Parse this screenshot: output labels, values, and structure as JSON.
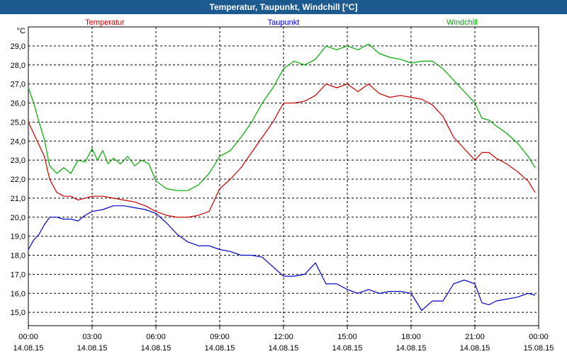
{
  "chart_data": {
    "type": "line",
    "title": "Temperatur, Taupunkt, Windchill [°C]",
    "ylabel": "°C",
    "ylim": [
      14.3,
      30.0
    ],
    "xlim": [
      "14.08.15 00:00",
      "15.08.15 00:00"
    ],
    "grid": true,
    "legend_placement": "top",
    "yticks": [
      "15,0",
      "16,0",
      "17,0",
      "18,0",
      "19,0",
      "20,0",
      "21,0",
      "22,0",
      "23,0",
      "24,0",
      "25,0",
      "26,0",
      "27,0",
      "28,0",
      "29,0"
    ],
    "xticks": [
      {
        "time": "00:00",
        "date": "14.08.15"
      },
      {
        "time": "03:00",
        "date": "14.08.15"
      },
      {
        "time": "06:00",
        "date": "14.08.15"
      },
      {
        "time": "09:00",
        "date": "14.08.15"
      },
      {
        "time": "12:00",
        "date": "14.08.15"
      },
      {
        "time": "15:00",
        "date": "14.08.15"
      },
      {
        "time": "18:00",
        "date": "14.08.15"
      },
      {
        "time": "21:00",
        "date": "14.08.15"
      },
      {
        "time": "00:00",
        "date": "15.08.15"
      }
    ],
    "series": [
      {
        "name": "Temperatur",
        "color": "#cc0000",
        "x": [
          "00:00",
          "00:15",
          "00:30",
          "00:45",
          "01:00",
          "01:20",
          "01:40",
          "02:00",
          "02:20",
          "02:40",
          "03:00",
          "03:30",
          "04:00",
          "04:30",
          "05:00",
          "05:30",
          "06:00",
          "06:30",
          "07:00",
          "07:30",
          "08:00",
          "08:30",
          "09:00",
          "09:30",
          "10:00",
          "10:30",
          "11:00",
          "11:30",
          "12:00",
          "12:30",
          "13:00",
          "13:30",
          "14:00",
          "14:30",
          "15:00",
          "15:30",
          "16:00",
          "16:30",
          "17:00",
          "17:30",
          "18:00",
          "18:30",
          "19:00",
          "19:30",
          "20:00",
          "20:30",
          "21:00",
          "21:20",
          "21:40",
          "22:00",
          "22:30",
          "23:00",
          "23:30",
          "23:50"
        ],
        "values": [
          25.0,
          24.4,
          23.8,
          23.2,
          22.0,
          21.3,
          21.1,
          21.1,
          20.9,
          21.0,
          21.1,
          21.1,
          21.0,
          20.9,
          20.8,
          20.6,
          20.3,
          20.1,
          20.0,
          20.0,
          20.1,
          20.3,
          21.5,
          22.0,
          22.6,
          23.4,
          24.2,
          25.0,
          26.0,
          26.0,
          26.1,
          26.4,
          27.0,
          26.8,
          27.0,
          26.6,
          27.0,
          26.5,
          26.3,
          26.4,
          26.3,
          26.2,
          25.9,
          25.3,
          24.2,
          23.6,
          23.0,
          23.4,
          23.4,
          23.1,
          22.8,
          22.4,
          21.9,
          21.3
        ]
      },
      {
        "name": "Taupunkt",
        "color": "#0000cc",
        "x": [
          "00:00",
          "00:15",
          "00:30",
          "00:45",
          "01:00",
          "01:20",
          "01:40",
          "02:00",
          "02:20",
          "02:40",
          "03:00",
          "03:30",
          "04:00",
          "04:30",
          "05:00",
          "05:30",
          "06:00",
          "06:30",
          "07:00",
          "07:30",
          "08:00",
          "08:30",
          "09:00",
          "09:30",
          "10:00",
          "10:30",
          "11:00",
          "11:30",
          "12:00",
          "12:30",
          "13:00",
          "13:30",
          "14:00",
          "14:30",
          "15:00",
          "15:30",
          "16:00",
          "16:30",
          "17:00",
          "17:30",
          "18:00",
          "18:30",
          "19:00",
          "19:30",
          "20:00",
          "20:30",
          "21:00",
          "21:20",
          "21:40",
          "22:00",
          "22:30",
          "23:00",
          "23:30",
          "23:50"
        ],
        "values": [
          18.3,
          18.8,
          19.1,
          19.6,
          20.0,
          20.0,
          19.9,
          19.9,
          19.8,
          20.1,
          20.3,
          20.4,
          20.6,
          20.6,
          20.5,
          20.4,
          20.2,
          19.7,
          19.1,
          18.7,
          18.5,
          18.5,
          18.3,
          18.2,
          18.0,
          18.0,
          17.9,
          17.4,
          16.9,
          16.9,
          17.0,
          17.6,
          16.5,
          16.5,
          16.2,
          16.0,
          16.2,
          16.0,
          16.1,
          16.1,
          16.0,
          15.1,
          15.6,
          15.6,
          16.5,
          16.7,
          16.5,
          15.5,
          15.4,
          15.6,
          15.7,
          15.8,
          16.0,
          15.9
        ]
      },
      {
        "name": "Windchill",
        "color": "#00aa00",
        "x": [
          "00:00",
          "00:15",
          "00:30",
          "00:45",
          "01:00",
          "01:20",
          "01:40",
          "02:00",
          "02:20",
          "02:40",
          "03:00",
          "03:15",
          "03:30",
          "03:45",
          "04:00",
          "04:20",
          "04:40",
          "05:00",
          "05:20",
          "05:40",
          "06:00",
          "06:30",
          "07:00",
          "07:30",
          "08:00",
          "08:30",
          "09:00",
          "09:30",
          "10:00",
          "10:30",
          "11:00",
          "11:30",
          "12:00",
          "12:30",
          "13:00",
          "13:30",
          "14:00",
          "14:30",
          "15:00",
          "15:30",
          "16:00",
          "16:30",
          "17:00",
          "17:30",
          "18:00",
          "18:30",
          "19:00",
          "19:30",
          "20:00",
          "20:30",
          "21:00",
          "21:20",
          "21:40",
          "22:00",
          "22:30",
          "23:00",
          "23:30",
          "23:50"
        ],
        "values": [
          26.8,
          26.0,
          25.0,
          24.1,
          22.7,
          22.3,
          22.6,
          22.3,
          23.0,
          22.9,
          23.6,
          23.0,
          23.5,
          22.8,
          23.1,
          22.8,
          23.2,
          22.7,
          23.0,
          22.8,
          21.9,
          21.5,
          21.4,
          21.4,
          21.7,
          22.3,
          23.2,
          23.5,
          24.2,
          25.0,
          26.0,
          26.8,
          27.8,
          28.2,
          28.0,
          28.3,
          29.0,
          28.8,
          29.0,
          28.8,
          29.1,
          28.6,
          28.4,
          28.3,
          28.1,
          28.2,
          28.2,
          27.8,
          27.2,
          26.6,
          26.0,
          25.2,
          25.1,
          24.8,
          24.4,
          23.9,
          23.2,
          22.6
        ]
      }
    ]
  }
}
